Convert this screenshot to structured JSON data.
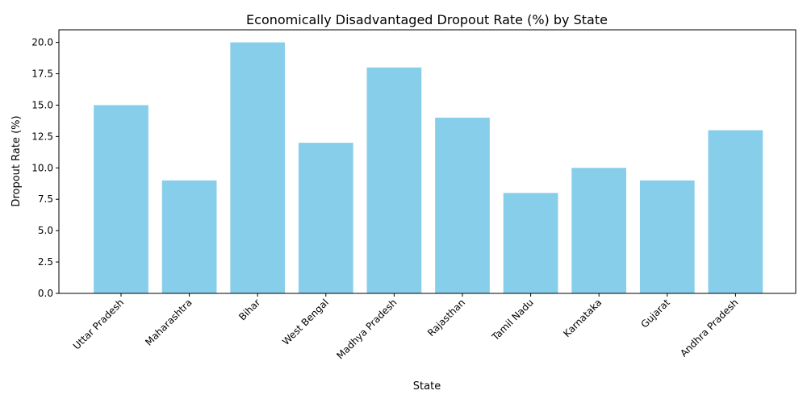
{
  "chart_data": {
    "type": "bar",
    "title": "Economically Disadvantaged Dropout Rate (%) by State",
    "xlabel": "State",
    "ylabel": "Dropout Rate (%)",
    "categories": [
      "Uttar Pradesh",
      "Maharashtra",
      "Bihar",
      "West Bengal",
      "Madhya Pradesh",
      "Rajasthan",
      "Tamil Nadu",
      "Karnataka",
      "Gujarat",
      "Andhra Pradesh"
    ],
    "values": [
      15,
      9,
      20,
      12,
      18,
      14,
      8,
      10,
      9,
      13
    ],
    "ylim": [
      0,
      21
    ],
    "yticks": [
      "0.0",
      "2.5",
      "5.0",
      "7.5",
      "10.0",
      "12.5",
      "15.0",
      "17.5",
      "20.0"
    ],
    "grid": false,
    "bar_color": "#87CEEB"
  }
}
